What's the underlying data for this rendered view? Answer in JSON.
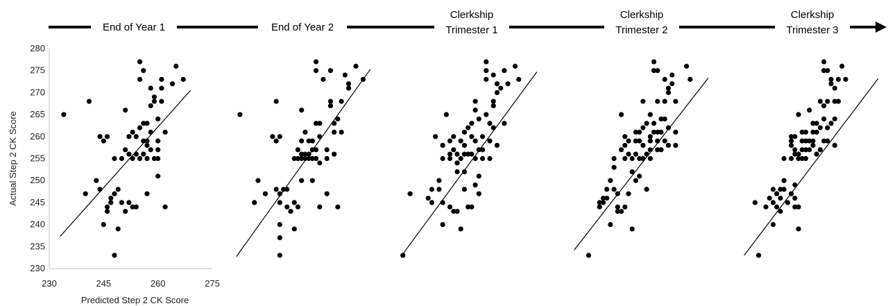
{
  "timeline": {
    "stages": [
      {
        "lines": [
          "End of Year 1"
        ]
      },
      {
        "lines": [
          "End of Year 2"
        ]
      },
      {
        "lines": [
          "Clerkship",
          "Trimester 1"
        ]
      },
      {
        "lines": [
          "Clerkship",
          "Trimester 2"
        ]
      },
      {
        "lines": [
          "Clerkship",
          "Trimester 3"
        ]
      }
    ]
  },
  "chart_data": [
    {
      "type": "scatter",
      "stage": "End of Year 1",
      "xlabel": "Predicted Step 2 CK Score",
      "ylabel": "Actual Step 2 CK Score",
      "xlim": [
        230,
        275
      ],
      "ylim": [
        230,
        280
      ],
      "xticks": [
        230,
        245,
        260,
        275
      ],
      "yticks": [
        230,
        235,
        240,
        245,
        250,
        255,
        260,
        265,
        270,
        275,
        280
      ],
      "trendline": [
        [
          233,
          237.3
        ],
        [
          269,
          270.5
        ]
      ],
      "points": [
        [
          234,
          265
        ],
        [
          241,
          268
        ],
        [
          240,
          247
        ],
        [
          243,
          250
        ],
        [
          244,
          248
        ],
        [
          244,
          260
        ],
        [
          245,
          259
        ],
        [
          246,
          260
        ],
        [
          245,
          240
        ],
        [
          246,
          244
        ],
        [
          246,
          243
        ],
        [
          247,
          246
        ],
        [
          247,
          245
        ],
        [
          248,
          255
        ],
        [
          248,
          247
        ],
        [
          248,
          233
        ],
        [
          249,
          248
        ],
        [
          249,
          239
        ],
        [
          250,
          245
        ],
        [
          250,
          255
        ],
        [
          251,
          257
        ],
        [
          251,
          266
        ],
        [
          251,
          243
        ],
        [
          252,
          260
        ],
        [
          252,
          256
        ],
        [
          252,
          245
        ],
        [
          253,
          261
        ],
        [
          253,
          255
        ],
        [
          253,
          244
        ],
        [
          254,
          260
        ],
        [
          254,
          256
        ],
        [
          254,
          244
        ],
        [
          255,
          277
        ],
        [
          255,
          273
        ],
        [
          255,
          262
        ],
        [
          255,
          255
        ],
        [
          256,
          275
        ],
        [
          256,
          263
        ],
        [
          256,
          259
        ],
        [
          256,
          256
        ],
        [
          257,
          263
        ],
        [
          257,
          259
        ],
        [
          257,
          258
        ],
        [
          257,
          255
        ],
        [
          257,
          247
        ],
        [
          258,
          271
        ],
        [
          258,
          267
        ],
        [
          258,
          261
        ],
        [
          258,
          257
        ],
        [
          259,
          269
        ],
        [
          259,
          255
        ],
        [
          259,
          268
        ],
        [
          260,
          264
        ],
        [
          260,
          259
        ],
        [
          260,
          257
        ],
        [
          260,
          255
        ],
        [
          260,
          251
        ],
        [
          261,
          273
        ],
        [
          261,
          271
        ],
        [
          261,
          268
        ],
        [
          262,
          261
        ],
        [
          262,
          244
        ],
        [
          264,
          272
        ],
        [
          265,
          276
        ],
        [
          267,
          273
        ]
      ]
    },
    {
      "type": "scatter",
      "stage": "End of Year 2",
      "trendline": [
        [
          233,
          232.7
        ],
        [
          270,
          275.3
        ]
      ],
      "points": [
        [
          234,
          265
        ],
        [
          238,
          245
        ],
        [
          239,
          250
        ],
        [
          241,
          247
        ],
        [
          243,
          260
        ],
        [
          244,
          268
        ],
        [
          244,
          248
        ],
        [
          244,
          259
        ],
        [
          245,
          260
        ],
        [
          245,
          247
        ],
        [
          245,
          245
        ],
        [
          245,
          240
        ],
        [
          245,
          237
        ],
        [
          245,
          233
        ],
        [
          246,
          248
        ],
        [
          247,
          248
        ],
        [
          247,
          244
        ],
        [
          248,
          243
        ],
        [
          249,
          255
        ],
        [
          249,
          245
        ],
        [
          249,
          239
        ],
        [
          250,
          257
        ],
        [
          250,
          255
        ],
        [
          250,
          244
        ],
        [
          251,
          266
        ],
        [
          251,
          259
        ],
        [
          251,
          256
        ],
        [
          251,
          255
        ],
        [
          251,
          250
        ],
        [
          252,
          261
        ],
        [
          252,
          256
        ],
        [
          252,
          255
        ],
        [
          253,
          259
        ],
        [
          253,
          256
        ],
        [
          253,
          255
        ],
        [
          254,
          259
        ],
        [
          254,
          257
        ],
        [
          254,
          255
        ],
        [
          254,
          250
        ],
        [
          255,
          275
        ],
        [
          255,
          277
        ],
        [
          255,
          263
        ],
        [
          255,
          257
        ],
        [
          255,
          255
        ],
        [
          256,
          263
        ],
        [
          256,
          260
        ],
        [
          256,
          254
        ],
        [
          256,
          244
        ],
        [
          257,
          273
        ],
        [
          258,
          257
        ],
        [
          258,
          255
        ],
        [
          258,
          247
        ],
        [
          259,
          275
        ],
        [
          259,
          268
        ],
        [
          259,
          267
        ],
        [
          260,
          263
        ],
        [
          260,
          261
        ],
        [
          260,
          256
        ],
        [
          261,
          264
        ],
        [
          261,
          244
        ],
        [
          262,
          268
        ],
        [
          262,
          261
        ],
        [
          263,
          274
        ],
        [
          264,
          272
        ],
        [
          264,
          271
        ],
        [
          266,
          276
        ],
        [
          268,
          273
        ]
      ]
    },
    {
      "type": "scatter",
      "stage": "Clerkship Trimester 1",
      "trendline": [
        [
          233,
          233.3
        ],
        [
          270,
          274.7
        ]
      ],
      "points": [
        [
          233,
          233
        ],
        [
          235,
          247
        ],
        [
          240,
          246
        ],
        [
          241,
          248
        ],
        [
          241,
          245
        ],
        [
          242,
          260
        ],
        [
          243,
          250
        ],
        [
          243,
          248
        ],
        [
          244,
          258
        ],
        [
          244,
          255
        ],
        [
          244,
          245
        ],
        [
          244,
          240
        ],
        [
          245,
          265
        ],
        [
          246,
          259
        ],
        [
          246,
          256
        ],
        [
          246,
          255
        ],
        [
          246,
          244
        ],
        [
          247,
          260
        ],
        [
          247,
          257
        ],
        [
          247,
          243
        ],
        [
          248,
          256
        ],
        [
          248,
          254
        ],
        [
          248,
          252
        ],
        [
          248,
          243
        ],
        [
          249,
          259
        ],
        [
          249,
          255
        ],
        [
          249,
          239
        ],
        [
          250,
          261
        ],
        [
          250,
          258
        ],
        [
          250,
          256
        ],
        [
          250,
          252
        ],
        [
          250,
          248
        ],
        [
          251,
          262
        ],
        [
          251,
          256
        ],
        [
          251,
          244
        ],
        [
          252,
          263
        ],
        [
          252,
          260
        ],
        [
          252,
          256
        ],
        [
          252,
          244
        ],
        [
          253,
          268
        ],
        [
          253,
          266
        ],
        [
          253,
          259
        ],
        [
          253,
          255
        ],
        [
          253,
          249
        ],
        [
          254,
          264
        ],
        [
          254,
          257
        ],
        [
          254,
          251
        ],
        [
          254,
          247
        ],
        [
          255,
          260
        ],
        [
          255,
          257
        ],
        [
          255,
          255
        ],
        [
          256,
          277
        ],
        [
          256,
          275
        ],
        [
          256,
          273
        ],
        [
          256,
          265
        ],
        [
          257,
          263
        ],
        [
          257,
          259
        ],
        [
          257,
          255
        ],
        [
          258,
          274
        ],
        [
          258,
          268
        ],
        [
          258,
          267
        ],
        [
          258,
          262
        ],
        [
          259,
          272
        ],
        [
          259,
          270
        ],
        [
          259,
          258
        ],
        [
          260,
          271
        ],
        [
          261,
          275
        ],
        [
          261,
          263
        ],
        [
          262,
          272
        ],
        [
          264,
          276
        ],
        [
          265,
          273
        ]
      ]
    },
    {
      "type": "scatter",
      "stage": "Clerkship Trimester 2",
      "trendline": [
        [
          233,
          234.2
        ],
        [
          270,
          273.3
        ]
      ],
      "points": [
        [
          237,
          233
        ],
        [
          240,
          245
        ],
        [
          240,
          244
        ],
        [
          241,
          246
        ],
        [
          241,
          245
        ],
        [
          242,
          248
        ],
        [
          242,
          246
        ],
        [
          243,
          250
        ],
        [
          243,
          240
        ],
        [
          244,
          248
        ],
        [
          244,
          255
        ],
        [
          244,
          253
        ],
        [
          245,
          247
        ],
        [
          245,
          244
        ],
        [
          245,
          243
        ],
        [
          246,
          265
        ],
        [
          246,
          257
        ],
        [
          246,
          243
        ],
        [
          247,
          260
        ],
        [
          247,
          258
        ],
        [
          247,
          255
        ],
        [
          247,
          244
        ],
        [
          248,
          259
        ],
        [
          248,
          256
        ],
        [
          248,
          247
        ],
        [
          249,
          255
        ],
        [
          249,
          252
        ],
        [
          249,
          239
        ],
        [
          250,
          261
        ],
        [
          250,
          259
        ],
        [
          250,
          256
        ],
        [
          250,
          250
        ],
        [
          251,
          261
        ],
        [
          251,
          259
        ],
        [
          251,
          255
        ],
        [
          251,
          251
        ],
        [
          252,
          268
        ],
        [
          252,
          262
        ],
        [
          252,
          258
        ],
        [
          252,
          255
        ],
        [
          253,
          263
        ],
        [
          253,
          256
        ],
        [
          253,
          248
        ],
        [
          254,
          265
        ],
        [
          254,
          260
        ],
        [
          254,
          259
        ],
        [
          254,
          257
        ],
        [
          254,
          255
        ],
        [
          255,
          277
        ],
        [
          255,
          275
        ],
        [
          255,
          263
        ],
        [
          255,
          261
        ],
        [
          256,
          275
        ],
        [
          256,
          268
        ],
        [
          256,
          261
        ],
        [
          256,
          259
        ],
        [
          256,
          257
        ],
        [
          257,
          264
        ],
        [
          257,
          261
        ],
        [
          257,
          257
        ],
        [
          258,
          273
        ],
        [
          258,
          268
        ],
        [
          258,
          264
        ],
        [
          258,
          259
        ],
        [
          259,
          271
        ],
        [
          259,
          270
        ],
        [
          259,
          262
        ],
        [
          259,
          258
        ],
        [
          260,
          274
        ],
        [
          260,
          272
        ],
        [
          261,
          268
        ],
        [
          261,
          261
        ],
        [
          261,
          258
        ],
        [
          264,
          276
        ],
        [
          265,
          273
        ]
      ]
    },
    {
      "type": "scatter",
      "stage": "Clerkship Trimester 3",
      "trendline": [
        [
          233,
          233.0
        ],
        [
          270,
          273.2
        ]
      ],
      "points": [
        [
          236,
          245
        ],
        [
          237,
          233
        ],
        [
          239,
          244
        ],
        [
          240,
          246
        ],
        [
          241,
          248
        ],
        [
          241,
          245
        ],
        [
          241,
          240
        ],
        [
          242,
          247
        ],
        [
          242,
          244
        ],
        [
          243,
          248
        ],
        [
          243,
          246
        ],
        [
          243,
          243
        ],
        [
          244,
          255
        ],
        [
          244,
          248
        ],
        [
          244,
          250
        ],
        [
          245,
          245
        ],
        [
          246,
          260
        ],
        [
          246,
          259
        ],
        [
          246,
          258
        ],
        [
          246,
          255
        ],
        [
          246,
          247
        ],
        [
          247,
          260
        ],
        [
          247,
          257
        ],
        [
          247,
          256
        ],
        [
          247,
          249
        ],
        [
          247,
          246
        ],
        [
          247,
          244
        ],
        [
          248,
          265
        ],
        [
          248,
          256
        ],
        [
          248,
          255
        ],
        [
          248,
          244
        ],
        [
          248,
          239
        ],
        [
          249,
          261
        ],
        [
          249,
          259
        ],
        [
          249,
          257
        ],
        [
          249,
          255
        ],
        [
          250,
          261
        ],
        [
          250,
          259
        ],
        [
          250,
          257
        ],
        [
          250,
          255
        ],
        [
          251,
          266
        ],
        [
          251,
          259
        ],
        [
          251,
          257
        ],
        [
          252,
          263
        ],
        [
          252,
          261
        ],
        [
          252,
          259
        ],
        [
          252,
          258
        ],
        [
          253,
          263
        ],
        [
          253,
          261
        ],
        [
          253,
          256
        ],
        [
          254,
          268
        ],
        [
          254,
          262
        ],
        [
          254,
          257
        ],
        [
          255,
          277
        ],
        [
          255,
          275
        ],
        [
          255,
          267
        ],
        [
          255,
          264
        ],
        [
          255,
          259
        ],
        [
          256,
          275
        ],
        [
          256,
          268
        ],
        [
          256,
          262
        ],
        [
          256,
          259
        ],
        [
          257,
          273
        ],
        [
          257,
          272
        ],
        [
          257,
          263
        ],
        [
          258,
          271
        ],
        [
          258,
          268
        ],
        [
          258,
          264
        ],
        [
          258,
          258
        ],
        [
          259,
          273
        ],
        [
          259,
          268
        ],
        [
          260,
          276
        ],
        [
          261,
          273
        ]
      ]
    }
  ]
}
